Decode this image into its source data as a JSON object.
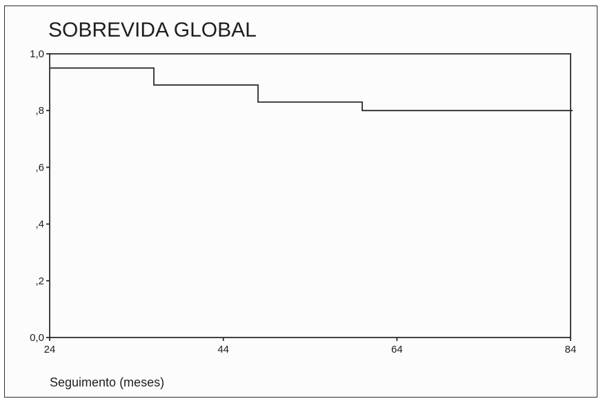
{
  "chart_data": {
    "type": "line",
    "title": "SOBREVIDA GLOBAL",
    "xlabel": "Seguimento (meses)",
    "ylabel": "",
    "xlim": [
      24,
      84
    ],
    "ylim": [
      0,
      1
    ],
    "x_ticks": [
      24,
      44,
      64,
      84
    ],
    "x_tick_labels": [
      "24",
      "44",
      "64",
      "84"
    ],
    "y_ticks": [
      0,
      0.2,
      0.4,
      0.6,
      0.8,
      1.0
    ],
    "y_tick_labels": [
      "0,0",
      ",2",
      ",4",
      ",6",
      ",8",
      "1,0"
    ],
    "grid": false,
    "step": true,
    "series": [
      {
        "x": [
          24,
          36,
          48,
          60,
          84
        ],
        "y": [
          0.95,
          0.89,
          0.83,
          0.8,
          0.8
        ]
      }
    ]
  }
}
